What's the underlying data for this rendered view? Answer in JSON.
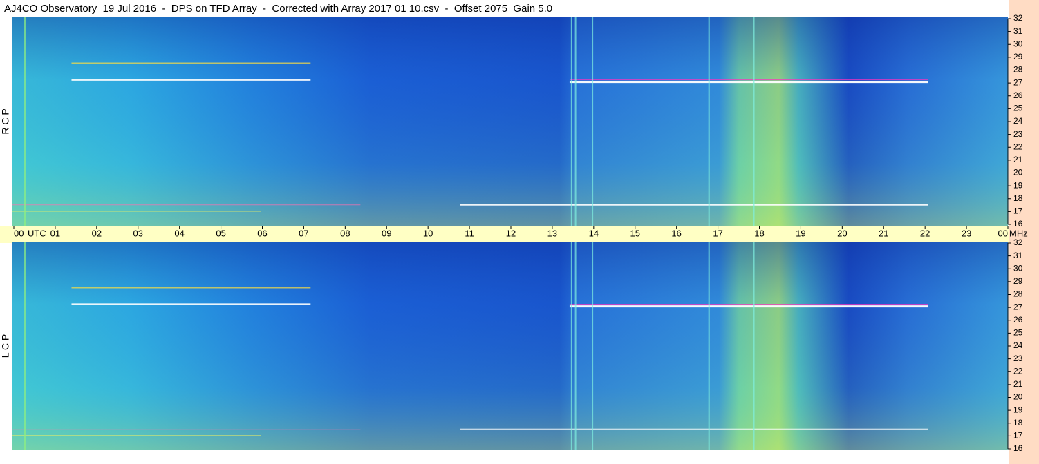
{
  "chart_data": {
    "type": "spectrogram",
    "title": "AJ4CO Observatory  19 Jul 2016  -  DPS on TFD Array  -  Corrected with Array 2017 01 10.csv  -  Offset 2075  Gain 5.0",
    "xlabel": "UTC",
    "yunit": "MHz",
    "xlim": [
      0,
      24
    ],
    "xticks": [
      {
        "value": 0,
        "label": "00"
      },
      {
        "value": 1,
        "label": "01"
      },
      {
        "value": 2,
        "label": "02"
      },
      {
        "value": 3,
        "label": "03"
      },
      {
        "value": 4,
        "label": "04"
      },
      {
        "value": 5,
        "label": "05"
      },
      {
        "value": 6,
        "label": "06"
      },
      {
        "value": 7,
        "label": "07"
      },
      {
        "value": 8,
        "label": "08"
      },
      {
        "value": 9,
        "label": "09"
      },
      10,
      11,
      12,
      13,
      14,
      15,
      16,
      17,
      18,
      19,
      20,
      21,
      22,
      23,
      {
        "value": 24,
        "label": "00"
      }
    ],
    "panels": [
      {
        "ylabel": "R C P",
        "ylim": [
          16,
          32
        ],
        "yticks": [
          16,
          17,
          18,
          19,
          20,
          21,
          22,
          23,
          24,
          25,
          26,
          27,
          28,
          29,
          30,
          31,
          32
        ]
      },
      {
        "ylabel": "L C P",
        "ylim": [
          16,
          32
        ],
        "yticks": [
          16,
          17,
          18,
          19,
          20,
          21,
          22,
          23,
          24,
          25,
          26,
          27,
          28,
          29,
          30,
          31,
          32
        ]
      }
    ]
  }
}
